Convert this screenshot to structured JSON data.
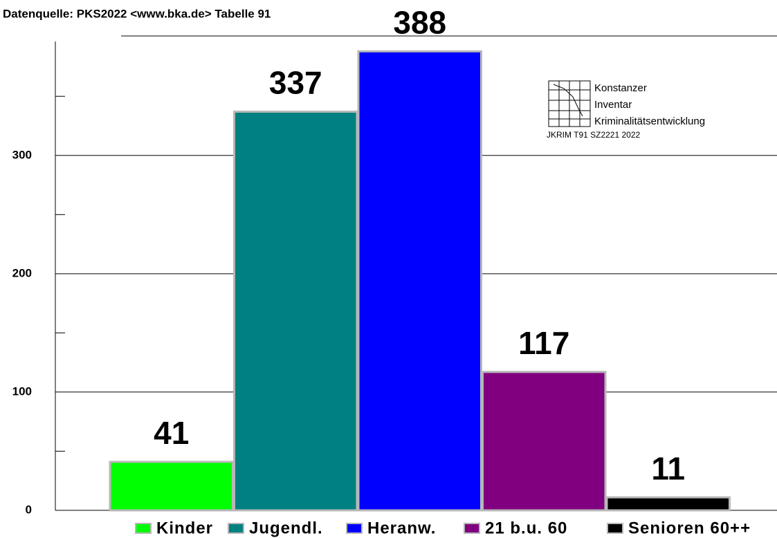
{
  "chart_data": {
    "type": "bar",
    "subtitle": "Datenquelle:  PKS2022  <www.bka.de> Tabelle 91",
    "categories": [
      "Kinder",
      "Jugendl.",
      "Heranw.",
      "21 b.u. 60",
      "Senioren 60++"
    ],
    "series": [
      {
        "name": "Kinder",
        "color": "#00ff00",
        "values": [
          41,
          null,
          null,
          null,
          null
        ]
      },
      {
        "name": "Jugendl.",
        "color": "#008080",
        "values": [
          null,
          337,
          null,
          null,
          null
        ]
      },
      {
        "name": "Heranw.",
        "color": "#0000ff",
        "values": [
          null,
          null,
          388,
          null,
          null
        ]
      },
      {
        "name": "21 b.u. 60",
        "color": "#800080",
        "values": [
          null,
          null,
          null,
          117,
          null
        ]
      },
      {
        "name": "Senioren 60++",
        "color": "#000000",
        "values": [
          null,
          null,
          null,
          null,
          11
        ]
      }
    ],
    "ylim": [
      0,
      401
    ],
    "yticks": [
      0,
      100,
      200,
      300
    ],
    "minor_yticks": [
      50,
      150,
      250,
      350
    ],
    "grid": true,
    "logo": {
      "lines": [
        "Konstanzer",
        "Inventar",
        "Kriminalitätsentwicklung"
      ],
      "code": "JKRIM T91 SZ2221  2022"
    }
  }
}
